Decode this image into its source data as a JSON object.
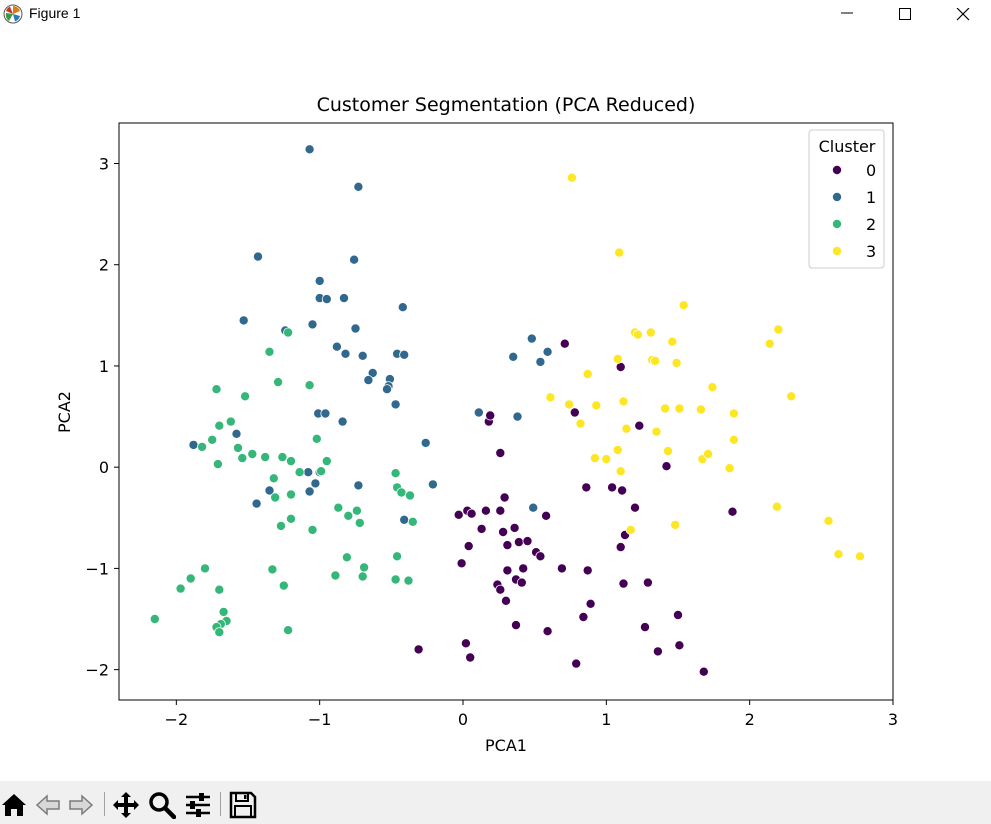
{
  "window": {
    "title": "Figure 1"
  },
  "toolbar": {
    "items": [
      "home-icon",
      "back-arrow-icon",
      "forward-arrow-icon",
      "pan-icon",
      "zoom-icon",
      "configure-subplots-icon",
      "save-icon"
    ]
  },
  "chart_data": {
    "type": "scatter",
    "title": "Customer Segmentation (PCA Reduced)",
    "xlabel": "PCA1",
    "ylabel": "PCA2",
    "xlim": [
      -2.4,
      3.0
    ],
    "ylim": [
      -2.3,
      3.4
    ],
    "xticks": [
      -2,
      -1,
      0,
      1,
      2,
      3
    ],
    "yticks": [
      -2,
      -1,
      0,
      1,
      2,
      3
    ],
    "grid": false,
    "legend": {
      "title": "Cluster",
      "placement": "upper right"
    },
    "series": [
      {
        "name": "0",
        "color": "#440154",
        "points": [
          [
            0.71,
            1.22
          ],
          [
            1.1,
            0.99
          ],
          [
            0.78,
            0.54
          ],
          [
            1.23,
            0.41
          ],
          [
            0.18,
            0.45
          ],
          [
            0.19,
            0.51
          ],
          [
            0.26,
            0.14
          ],
          [
            1.42,
            0.01
          ],
          [
            -0.03,
            -0.47
          ],
          [
            0.03,
            -0.43
          ],
          [
            0.06,
            -0.46
          ],
          [
            0.16,
            -0.43
          ],
          [
            0.26,
            -0.43
          ],
          [
            0.29,
            -0.3
          ],
          [
            0.58,
            -0.48
          ],
          [
            0.86,
            -0.2
          ],
          [
            1.04,
            -0.2
          ],
          [
            1.11,
            -0.23
          ],
          [
            1.2,
            -0.4
          ],
          [
            1.13,
            -0.67
          ],
          [
            1.1,
            -0.79
          ],
          [
            1.88,
            -0.44
          ],
          [
            0.04,
            -0.78
          ],
          [
            0.13,
            -0.61
          ],
          [
            0.28,
            -0.64
          ],
          [
            0.31,
            -0.77
          ],
          [
            0.36,
            -0.6
          ],
          [
            0.39,
            -0.74
          ],
          [
            0.45,
            -0.73
          ],
          [
            0.51,
            -0.84
          ],
          [
            -0.01,
            -0.95
          ],
          [
            0.31,
            -1.02
          ],
          [
            0.37,
            -1.11
          ],
          [
            0.42,
            -1
          ],
          [
            0.54,
            -0.88
          ],
          [
            0.69,
            -1
          ],
          [
            0.87,
            -1.02
          ],
          [
            0.24,
            -1.16
          ],
          [
            0.26,
            -1.21
          ],
          [
            0.41,
            -1.14
          ],
          [
            0.3,
            -1.32
          ],
          [
            1.12,
            -1.15
          ],
          [
            1.29,
            -1.14
          ],
          [
            0.89,
            -1.35
          ],
          [
            0.84,
            -1.48
          ],
          [
            1.5,
            -1.46
          ],
          [
            0.37,
            -1.56
          ],
          [
            0.59,
            -1.62
          ],
          [
            1.27,
            -1.58
          ],
          [
            0.02,
            -1.74
          ],
          [
            -0.31,
            -1.8
          ],
          [
            0.05,
            -1.88
          ],
          [
            0.79,
            -1.94
          ],
          [
            1.36,
            -1.82
          ],
          [
            1.51,
            -1.76
          ],
          [
            1.68,
            -2.02
          ]
        ]
      },
      {
        "name": "1",
        "color": "#31688e",
        "points": [
          [
            -1.07,
            3.14
          ],
          [
            -0.73,
            2.77
          ],
          [
            -1.43,
            2.08
          ],
          [
            -0.76,
            2.05
          ],
          [
            -1.0,
            1.84
          ],
          [
            -1.0,
            1.67
          ],
          [
            -0.95,
            1.66
          ],
          [
            -0.83,
            1.67
          ],
          [
            -0.42,
            1.58
          ],
          [
            -1.53,
            1.45
          ],
          [
            -1.24,
            1.35
          ],
          [
            -1.05,
            1.41
          ],
          [
            -0.75,
            1.37
          ],
          [
            -0.88,
            1.19
          ],
          [
            -0.82,
            1.12
          ],
          [
            -0.7,
            1.1
          ],
          [
            -0.46,
            1.12
          ],
          [
            -0.41,
            1.11
          ],
          [
            -0.63,
            0.93
          ],
          [
            -0.66,
            0.86
          ],
          [
            -0.51,
            0.87
          ],
          [
            -0.52,
            0.8
          ],
          [
            -0.53,
            0.77
          ],
          [
            -0.47,
            0.62
          ],
          [
            0.48,
            1.27
          ],
          [
            0.35,
            1.09
          ],
          [
            0.59,
            1.14
          ],
          [
            0.54,
            1.04
          ],
          [
            -1.01,
            0.53
          ],
          [
            -0.96,
            0.53
          ],
          [
            -0.84,
            0.45
          ],
          [
            0.11,
            0.54
          ],
          [
            0.38,
            0.5
          ],
          [
            -1.88,
            0.22
          ],
          [
            -1.58,
            0.33
          ],
          [
            -0.26,
            0.24
          ],
          [
            -1.08,
            -0.05
          ],
          [
            -1.0,
            -0.05
          ],
          [
            -1.03,
            -0.16
          ],
          [
            -1.07,
            -0.24
          ],
          [
            -0.73,
            -0.18
          ],
          [
            -0.21,
            -0.17
          ],
          [
            -1.35,
            -0.23
          ],
          [
            -1.44,
            -0.36
          ],
          [
            -0.41,
            -0.52
          ],
          [
            0.49,
            -0.4
          ]
        ]
      },
      {
        "name": "2",
        "color": "#35b779",
        "points": [
          [
            -1.22,
            1.33
          ],
          [
            -1.35,
            1.14
          ],
          [
            -1.29,
            0.84
          ],
          [
            -1.07,
            0.81
          ],
          [
            -1.72,
            0.77
          ],
          [
            -1.52,
            0.7
          ],
          [
            -1.62,
            0.45
          ],
          [
            -1.7,
            0.41
          ],
          [
            -1.82,
            0.2
          ],
          [
            -1.75,
            0.27
          ],
          [
            -1.57,
            0.19
          ],
          [
            -1.47,
            0.13
          ],
          [
            -1.54,
            0.09
          ],
          [
            -1.38,
            0.1
          ],
          [
            -1.26,
            0.1
          ],
          [
            -1.2,
            0.06
          ],
          [
            -1.02,
            0.28
          ],
          [
            -0.95,
            0.06
          ],
          [
            -1.14,
            -0.05
          ],
          [
            -0.99,
            -0.04
          ],
          [
            -1.71,
            0.03
          ],
          [
            -1.32,
            -0.11
          ],
          [
            -1.31,
            -0.3
          ],
          [
            -1.2,
            -0.27
          ],
          [
            -0.47,
            -0.06
          ],
          [
            -0.46,
            -0.2
          ],
          [
            -0.43,
            -0.25
          ],
          [
            -0.37,
            -0.28
          ],
          [
            -0.87,
            -0.4
          ],
          [
            -0.8,
            -0.48
          ],
          [
            -0.74,
            -0.43
          ],
          [
            -0.72,
            -0.55
          ],
          [
            -1.2,
            -0.51
          ],
          [
            -1.27,
            -0.58
          ],
          [
            -1.05,
            -0.62
          ],
          [
            -0.35,
            -0.54
          ],
          [
            -0.81,
            -0.89
          ],
          [
            -0.69,
            -0.99
          ],
          [
            -0.46,
            -0.88
          ],
          [
            -1.33,
            -1.01
          ],
          [
            -1.8,
            -1.0
          ],
          [
            -0.89,
            -1.07
          ],
          [
            -0.7,
            -1.08
          ],
          [
            -1.9,
            -1.1
          ],
          [
            -0.47,
            -1.11
          ],
          [
            -0.38,
            -1.12
          ],
          [
            -1.25,
            -1.17
          ],
          [
            -1.97,
            -1.2
          ],
          [
            -1.7,
            -1.21
          ],
          [
            -2.15,
            -1.5
          ],
          [
            -1.67,
            -1.43
          ],
          [
            -1.65,
            -1.52
          ],
          [
            -1.69,
            -1.55
          ],
          [
            -1.72,
            -1.58
          ],
          [
            -1.7,
            -1.63
          ],
          [
            -1.22,
            -1.61
          ]
        ]
      },
      {
        "name": "3",
        "color": "#fde725",
        "points": [
          [
            0.76,
            2.86
          ],
          [
            1.09,
            2.12
          ],
          [
            1.54,
            1.6
          ],
          [
            1.2,
            1.33
          ],
          [
            1.22,
            1.31
          ],
          [
            1.31,
            1.33
          ],
          [
            1.46,
            1.24
          ],
          [
            2.2,
            1.36
          ],
          [
            2.14,
            1.22
          ],
          [
            1.08,
            1.07
          ],
          [
            1.32,
            1.06
          ],
          [
            1.34,
            1.05
          ],
          [
            1.49,
            1.03
          ],
          [
            0.87,
            0.92
          ],
          [
            1.74,
            0.79
          ],
          [
            2.29,
            0.7
          ],
          [
            0.61,
            0.69
          ],
          [
            0.74,
            0.62
          ],
          [
            0.93,
            0.61
          ],
          [
            1.12,
            0.65
          ],
          [
            1.41,
            0.58
          ],
          [
            1.51,
            0.58
          ],
          [
            1.66,
            0.57
          ],
          [
            1.89,
            0.53
          ],
          [
            0.82,
            0.43
          ],
          [
            1.14,
            0.38
          ],
          [
            1.35,
            0.35
          ],
          [
            1.89,
            0.27
          ],
          [
            1.08,
            0.17
          ],
          [
            1.43,
            0.16
          ],
          [
            0.92,
            0.09
          ],
          [
            1.0,
            0.08
          ],
          [
            1.67,
            0.08
          ],
          [
            1.71,
            0.13
          ],
          [
            1.1,
            -0.04
          ],
          [
            1.86,
            -0.01
          ],
          [
            2.19,
            -0.39
          ],
          [
            2.55,
            -0.53
          ],
          [
            1.48,
            -0.57
          ],
          [
            1.17,
            -0.62
          ],
          [
            2.62,
            -0.86
          ],
          [
            2.77,
            -0.88
          ]
        ]
      }
    ]
  }
}
